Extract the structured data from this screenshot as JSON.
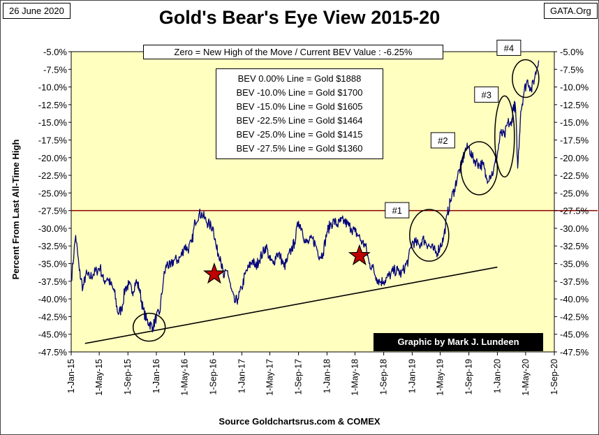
{
  "header": {
    "date": "26 June 2020",
    "title": "Gold's Bear's Eye View 2015-20",
    "source_tag": "GATA.Org"
  },
  "note": "Zero = New High of the Move / Current  BEV Value : -6.25%",
  "bev_lines": [
    "BEV 0.00% Line = Gold $1888",
    "BEV -10.0% Line = Gold $1700",
    "BEV -15.0% Line = Gold $1605",
    "BEV -22.5% Line = Gold $1464",
    "BEV -25.0% Line = Gold $1415",
    "BEV -27.5% Line = Gold $1360"
  ],
  "credit": "Graphic by Mark J. Lundeen",
  "footer": "Source Goldchartsrus.com & COMEX",
  "colors": {
    "plot_background": "#FFFFC0",
    "series_line": "#00007A",
    "reference_line": "#8B0000",
    "star_fill": "#C00000",
    "text": "#000000"
  },
  "chart_data": {
    "type": "line",
    "title": "Gold's Bear's Eye View 2015-20",
    "ylabel": "Percent  From  Last  All-Time  High",
    "xlabel": "",
    "ylim": [
      -47.5,
      -5.0
    ],
    "y_ticks": [
      -5.0,
      -7.5,
      -10.0,
      -12.5,
      -15.0,
      -17.5,
      -20.0,
      -22.5,
      -25.0,
      -27.5,
      -30.0,
      -32.5,
      -35.0,
      -37.5,
      -40.0,
      -42.5,
      -45.0,
      -47.5
    ],
    "y_tick_labels": [
      "-5.0%",
      "-7.5%",
      "-10.0%",
      "-12.5%",
      "-15.0%",
      "-17.5%",
      "-20.0%",
      "-22.5%",
      "-25.0%",
      "-27.5%",
      "-30.0%",
      "-32.5%",
      "-35.0%",
      "-37.5%",
      "-40.0%",
      "-42.5%",
      "-45.0%",
      "-47.5%"
    ],
    "x_ticks": [
      "2015-01-01",
      "2015-05-01",
      "2015-09-01",
      "2016-01-01",
      "2016-05-01",
      "2016-09-01",
      "2017-01-01",
      "2017-05-01",
      "2017-09-01",
      "2018-01-01",
      "2018-05-01",
      "2018-09-01",
      "2019-01-01",
      "2019-05-01",
      "2019-09-01",
      "2020-01-01",
      "2020-05-01",
      "2020-09-01"
    ],
    "x_tick_labels": [
      "1-Jan-15",
      "1-May-15",
      "1-Sep-15",
      "1-Jan-16",
      "1-May-16",
      "1-Sep-16",
      "1-Jan-17",
      "1-May-17",
      "1-Sep-17",
      "1-Jan-18",
      "1-May-18",
      "1-Sep-18",
      "1-Jan-19",
      "1-May-19",
      "1-Sep-19",
      "1-Jan-20",
      "1-May-20",
      "1-Sep-20"
    ],
    "grid": false,
    "series": [
      {
        "x": [
          "2015-01-01",
          "2015-01-20",
          "2015-02-05",
          "2015-02-20",
          "2015-03-05",
          "2015-03-20",
          "2015-04-05",
          "2015-04-20",
          "2015-05-05",
          "2015-05-20",
          "2015-06-05",
          "2015-06-20",
          "2015-07-05",
          "2015-07-20",
          "2015-08-05",
          "2015-08-20",
          "2015-09-05",
          "2015-09-20",
          "2015-10-05",
          "2015-10-20",
          "2015-11-05",
          "2015-11-20",
          "2015-12-03",
          "2015-12-17",
          "2016-01-01",
          "2016-01-15",
          "2016-02-01",
          "2016-02-15",
          "2016-03-01",
          "2016-03-15",
          "2016-04-01",
          "2016-04-15",
          "2016-05-01",
          "2016-05-15",
          "2016-06-01",
          "2016-06-15",
          "2016-07-01",
          "2016-07-15",
          "2016-08-01",
          "2016-08-15",
          "2016-09-01",
          "2016-09-15",
          "2016-10-01",
          "2016-10-15",
          "2016-11-01",
          "2016-11-15",
          "2016-12-01",
          "2016-12-15",
          "2017-01-01",
          "2017-01-15",
          "2017-02-01",
          "2017-02-15",
          "2017-03-01",
          "2017-03-15",
          "2017-04-01",
          "2017-04-15",
          "2017-05-01",
          "2017-05-15",
          "2017-06-01",
          "2017-06-15",
          "2017-07-01",
          "2017-07-15",
          "2017-08-01",
          "2017-08-15",
          "2017-09-01",
          "2017-09-15",
          "2017-10-01",
          "2017-10-15",
          "2017-11-01",
          "2017-11-15",
          "2017-12-01",
          "2017-12-15",
          "2018-01-01",
          "2018-01-15",
          "2018-02-01",
          "2018-02-15",
          "2018-03-01",
          "2018-03-15",
          "2018-04-01",
          "2018-04-15",
          "2018-05-01",
          "2018-05-15",
          "2018-06-01",
          "2018-06-15",
          "2018-07-01",
          "2018-07-15",
          "2018-08-01",
          "2018-08-15",
          "2018-09-01",
          "2018-09-15",
          "2018-10-01",
          "2018-10-15",
          "2018-11-01",
          "2018-11-15",
          "2018-12-01",
          "2018-12-15",
          "2019-01-01",
          "2019-01-15",
          "2019-02-01",
          "2019-02-15",
          "2019-03-01",
          "2019-03-15",
          "2019-04-01",
          "2019-04-15",
          "2019-05-01",
          "2019-05-15",
          "2019-06-01",
          "2019-06-15",
          "2019-07-01",
          "2019-07-15",
          "2019-08-01",
          "2019-08-15",
          "2019-09-01",
          "2019-09-15",
          "2019-10-01",
          "2019-10-15",
          "2019-11-01",
          "2019-11-15",
          "2019-12-01",
          "2019-12-15",
          "2020-01-01",
          "2020-01-15",
          "2020-02-01",
          "2020-02-15",
          "2020-03-01",
          "2020-03-10",
          "2020-03-19",
          "2020-03-28",
          "2020-04-10",
          "2020-04-25",
          "2020-05-10",
          "2020-05-25",
          "2020-06-10",
          "2020-06-26"
        ],
        "values": [
          -37.5,
          -31.0,
          -36.0,
          -38.5,
          -36.5,
          -37.0,
          -36.5,
          -36.0,
          -35.5,
          -37.5,
          -37.0,
          -38.0,
          -39.0,
          -42.0,
          -41.5,
          -38.5,
          -38.0,
          -39.0,
          -37.5,
          -38.5,
          -41.5,
          -43.0,
          -43.5,
          -44.0,
          -42.5,
          -42.0,
          -37.0,
          -35.0,
          -35.5,
          -34.5,
          -34.5,
          -34.0,
          -32.5,
          -33.0,
          -32.0,
          -29.0,
          -28.0,
          -28.0,
          -29.0,
          -29.5,
          -30.0,
          -33.0,
          -34.0,
          -37.0,
          -36.0,
          -38.5,
          -40.5,
          -40.0,
          -38.5,
          -36.5,
          -35.5,
          -34.5,
          -35.5,
          -34.5,
          -33.5,
          -32.5,
          -34.5,
          -35.0,
          -33.5,
          -34.0,
          -35.5,
          -34.5,
          -33.0,
          -32.0,
          -29.0,
          -30.0,
          -32.0,
          -32.0,
          -31.5,
          -32.5,
          -34.0,
          -33.5,
          -30.5,
          -29.5,
          -29.0,
          -29.5,
          -29.0,
          -29.0,
          -29.5,
          -30.0,
          -30.5,
          -31.0,
          -32.0,
          -32.5,
          -35.0,
          -35.5,
          -37.0,
          -37.5,
          -37.5,
          -37.0,
          -36.5,
          -36.0,
          -36.0,
          -36.5,
          -35.5,
          -34.5,
          -32.0,
          -32.0,
          -32.5,
          -31.5,
          -32.0,
          -32.5,
          -33.0,
          -33.5,
          -32.5,
          -31.5,
          -28.0,
          -26.0,
          -24.5,
          -22.5,
          -21.0,
          -19.0,
          -18.5,
          -20.0,
          -20.5,
          -21.0,
          -21.0,
          -23.0,
          -22.5,
          -22.0,
          -19.5,
          -16.5,
          -17.0,
          -15.0,
          -15.5,
          -12.5,
          -13.0,
          -21.5,
          -13.5,
          -10.5,
          -9.0,
          -10.5,
          -8.5,
          -6.25
        ]
      }
    ],
    "reference_line": {
      "y": -27.5,
      "label": "-27.5%"
    },
    "trend_line": {
      "x": [
        "2015-03-01",
        "2020-01-01"
      ],
      "y": [
        -46.3,
        -35.5
      ]
    },
    "circles": [
      {
        "label": "",
        "x": "2015-12-01",
        "y": -44.0
      },
      {
        "label": "#1",
        "x": "2019-03-15",
        "y": -31.0
      },
      {
        "label": "#2",
        "x": "2019-10-15",
        "y": -21.5
      },
      {
        "label": "#3",
        "x": "2020-02-01",
        "y": -17.0
      },
      {
        "label": "#4",
        "x": "2020-05-01",
        "y": -8.8
      }
    ],
    "stars": [
      {
        "x": "2016-09-05",
        "y": -36.5
      },
      {
        "x": "2018-05-20",
        "y": -33.9
      }
    ]
  }
}
